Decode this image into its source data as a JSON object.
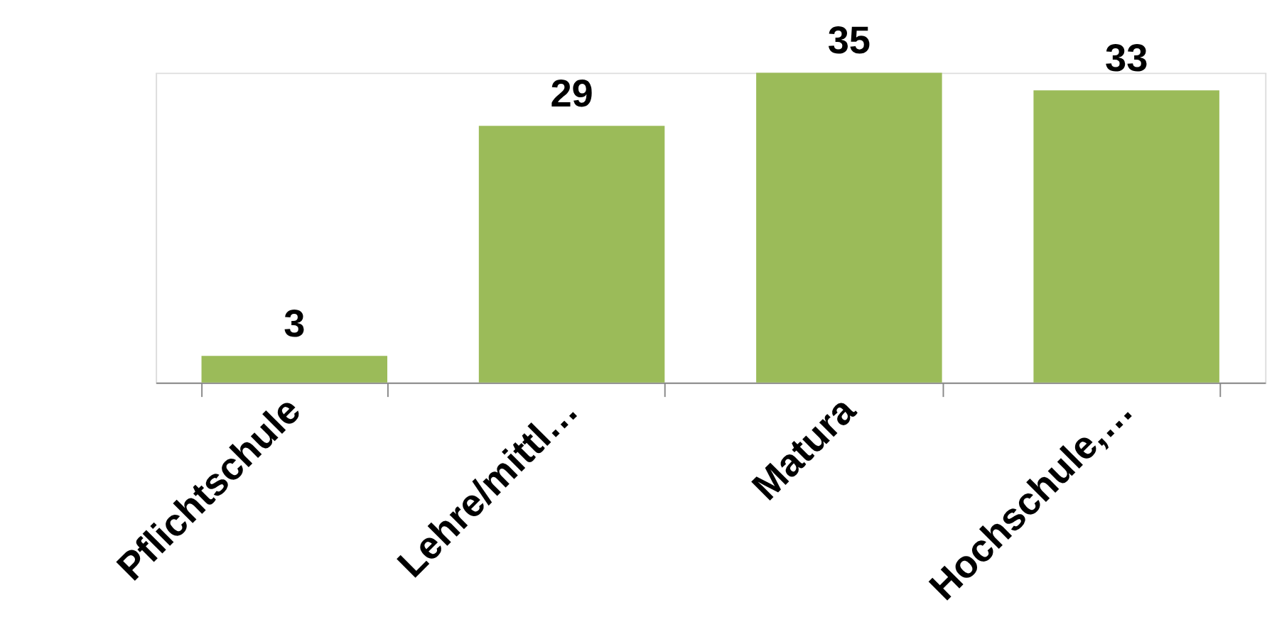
{
  "chart_data": {
    "type": "bar",
    "categories": [
      "Pflichtschule",
      "Lehre/mittl…",
      "Matura",
      "Hochschule,…"
    ],
    "values": [
      3,
      29,
      35,
      33
    ],
    "color": "#9bbb59",
    "data_labels": true
  }
}
